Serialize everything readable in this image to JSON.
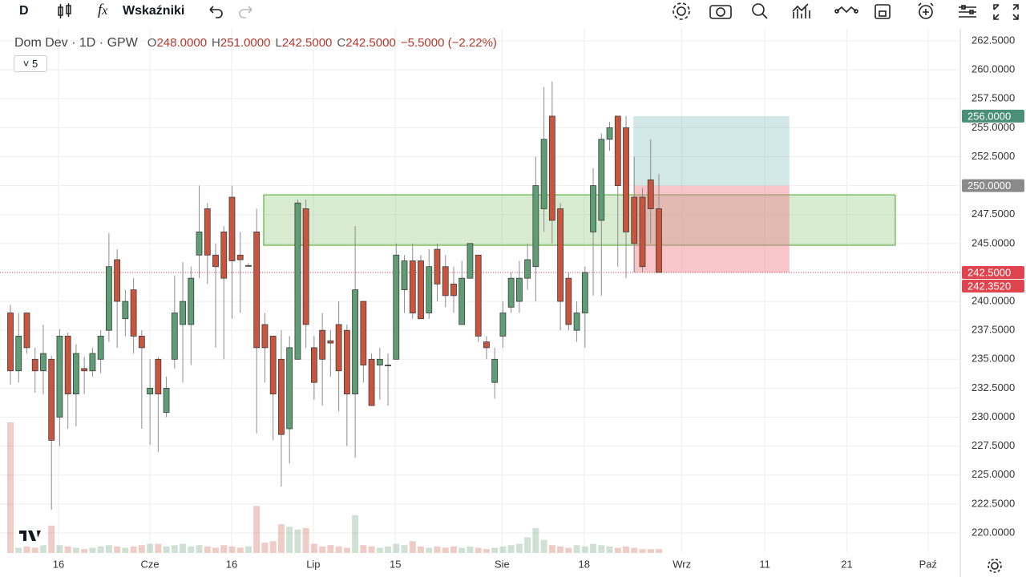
{
  "toolbar": {
    "symbol_button": "D",
    "indicators": "Wskaźniki"
  },
  "header": {
    "title": "Dom Dev · 1D · GPW",
    "collapse_count": "5",
    "ohlc": [
      {
        "label": "O",
        "value": "248.0000"
      },
      {
        "label": "H",
        "value": "251.0000"
      },
      {
        "label": "L",
        "value": "242.5000"
      },
      {
        "label": "C",
        "value": "242.5000"
      }
    ],
    "change": "−5.5000 (−2.22%)"
  },
  "chart_data": {
    "type": "candlestick",
    "x": [
      0,
      1,
      2,
      3,
      4,
      5,
      6,
      7,
      8,
      9,
      10,
      11,
      12,
      13,
      14,
      15,
      16,
      17,
      18,
      19,
      20,
      21,
      22,
      23,
      24,
      25,
      26,
      27,
      28,
      29,
      30,
      31,
      32,
      33,
      34,
      35,
      36,
      37,
      38,
      39,
      40,
      41,
      42,
      43,
      44,
      45,
      46,
      47,
      48,
      49,
      50,
      51,
      52,
      53,
      54,
      55,
      56,
      57,
      58,
      59,
      60,
      61,
      62,
      63,
      64,
      65,
      66,
      67,
      68,
      69,
      70,
      71,
      72,
      73,
      74,
      75,
      76,
      77,
      78,
      79
    ],
    "open": [
      239,
      234,
      239,
      235,
      234,
      235,
      230,
      237,
      232,
      234.2,
      234,
      235,
      237.5,
      243.6,
      238.5,
      241,
      237,
      232,
      235,
      230.4,
      235,
      238,
      238,
      244,
      248,
      244,
      246,
      249,
      244,
      243.1,
      246,
      238,
      237,
      235,
      229,
      235,
      248,
      236,
      237.5,
      236.6,
      238,
      237.5,
      232,
      240,
      235,
      234.5,
      234.5,
      235,
      241,
      243.5,
      243.5,
      239,
      244.5,
      243,
      241.5,
      238,
      242,
      244,
      236.5,
      233,
      237,
      239.5,
      240,
      242,
      243,
      248,
      256,
      248,
      242,
      237.5,
      239,
      246,
      247,
      254,
      256,
      255,
      249,
      249,
      250.5,
      248
    ],
    "high": [
      239.7,
      239,
      239,
      236,
      238,
      235.3,
      237.6,
      237.3,
      236.3,
      235.2,
      236,
      237.5,
      245.9,
      244.5,
      241,
      242,
      237.5,
      235,
      235.2,
      233.5,
      242.2,
      243.4,
      243,
      250,
      248.5,
      245,
      246.5,
      250,
      246,
      243.3,
      248,
      239,
      237,
      237.5,
      237,
      248.8,
      248.8,
      237,
      239,
      237.5,
      240,
      238,
      246.5,
      240,
      235.5,
      236,
      235.5,
      245,
      244,
      245,
      244,
      244.5,
      245,
      244,
      243,
      243.5,
      245,
      244,
      237,
      236,
      240,
      242.5,
      243.5,
      245,
      252.5,
      258.5,
      259,
      248.5,
      242.5,
      240,
      243,
      251.5,
      254.5,
      255.5,
      256,
      256,
      252.5,
      249.8,
      254,
      251
    ],
    "low": [
      232.8,
      233,
      235.5,
      232.1,
      232,
      222,
      227.5,
      229,
      229.2,
      232,
      233.5,
      233.8,
      236.5,
      236,
      237,
      235.5,
      229,
      227.6,
      227,
      230,
      234.2,
      233,
      234.5,
      242,
      241.5,
      236,
      235,
      238.5,
      239,
      243,
      228.6,
      233,
      228,
      224,
      226,
      235,
      236,
      231.5,
      231,
      233.5,
      230.5,
      227.5,
      226.5,
      233,
      231,
      231.5,
      231,
      235,
      239,
      238.5,
      238.5,
      238.5,
      240,
      239.5,
      239,
      238,
      242,
      236.5,
      235,
      231.6,
      236,
      239,
      239,
      241,
      240,
      246,
      245,
      237.5,
      237.5,
      236.5,
      236,
      240.5,
      240.5,
      253,
      243,
      242,
      242.5,
      242.5,
      245,
      242.5
    ],
    "close": [
      234,
      237,
      236,
      234,
      235.5,
      228,
      237,
      232,
      235.5,
      234,
      235.5,
      237,
      243,
      240,
      240,
      237,
      236,
      232.5,
      232,
      232.5,
      239,
      240,
      242,
      246,
      244,
      243,
      242,
      243.5,
      243.6,
      243.1,
      236,
      236,
      232,
      228.5,
      236,
      248.5,
      238,
      233,
      235,
      236.4,
      234,
      232,
      241,
      234.5,
      231,
      235,
      234.5,
      244,
      243.5,
      239,
      238.5,
      243,
      241.5,
      240.5,
      240.5,
      242,
      245,
      237,
      236,
      235,
      239,
      242,
      242,
      243.6,
      250,
      254,
      247,
      240,
      238,
      239,
      242.5,
      250,
      254,
      255,
      250,
      246,
      245,
      243,
      248,
      242.5
    ],
    "volume": [
      100,
      4,
      5,
      4,
      6,
      21,
      6,
      5,
      4,
      3,
      4,
      5,
      6,
      5,
      4,
      5,
      6,
      7,
      7,
      5,
      6,
      7,
      5,
      6,
      5,
      4,
      6,
      5,
      4,
      5,
      36,
      8,
      9,
      22,
      20,
      18,
      19,
      7,
      5,
      6,
      5,
      4,
      29,
      6,
      5,
      4,
      5,
      7,
      6,
      9,
      5,
      4,
      5,
      4,
      5,
      4,
      5,
      4,
      3,
      4,
      5,
      6,
      7,
      12,
      19,
      10,
      6,
      5,
      4,
      6,
      5,
      7,
      6,
      5,
      4,
      5,
      4,
      3,
      3,
      3
    ],
    "up_color": "#5f9d74",
    "down_color": "#c9553f",
    "xlim": [
      -1.27,
      115.72
    ],
    "ylim": [
      218.27,
      263.54
    ],
    "xticks": [
      {
        "value": 5.86,
        "label": "16"
      },
      {
        "value": 17,
        "label": "Cze"
      },
      {
        "value": 26.95,
        "label": "16"
      },
      {
        "value": 36.9,
        "label": "Lip"
      },
      {
        "value": 46.9,
        "label": "15"
      },
      {
        "value": 59.9,
        "label": "Sie"
      },
      {
        "value": 69.9,
        "label": "18"
      },
      {
        "value": 81.8,
        "label": "Wrz"
      },
      {
        "value": 91.9,
        "label": "11"
      },
      {
        "value": 101.9,
        "label": "21"
      },
      {
        "value": 111.8,
        "label": "Paź"
      }
    ],
    "yticks": [
      {
        "value": 220,
        "label": "220.0000"
      },
      {
        "value": 222.5,
        "label": "222.5000"
      },
      {
        "value": 225,
        "label": "225.0000"
      },
      {
        "value": 227.5,
        "label": "227.5000"
      },
      {
        "value": 230,
        "label": "230.0000"
      },
      {
        "value": 232.5,
        "label": "232.5000"
      },
      {
        "value": 235,
        "label": "235.0000"
      },
      {
        "value": 237.5,
        "label": "237.5000"
      },
      {
        "value": 240,
        "label": "240.0000"
      },
      {
        "value": 242.5,
        "label": "242.5000"
      },
      {
        "value": 245,
        "label": "245.0000"
      },
      {
        "value": 247.5,
        "label": "247.5000"
      },
      {
        "value": 250,
        "label": "250.0000"
      },
      {
        "value": 252.5,
        "label": "252.5000"
      },
      {
        "value": 255,
        "label": "255.0000"
      },
      {
        "value": 257.5,
        "label": "257.5000"
      },
      {
        "value": 260,
        "label": "260.0000"
      },
      {
        "value": 262.5,
        "label": "262.5000"
      }
    ],
    "grid": true,
    "price_labels": [
      {
        "value": 256,
        "label": "256.0000",
        "color": "#4a8f78"
      },
      {
        "value": 250,
        "label": "250.0000",
        "color": "#8a8a8a"
      },
      {
        "value": 242.5,
        "label": "242.5000",
        "color": "#e0454f"
      },
      {
        "value": 242.352,
        "label": "242.3520",
        "color": "#e0454f"
      }
    ],
    "last_price": 242.5,
    "zone": {
      "x_start": 30.86,
      "x_end": 107.8,
      "top": 249.2,
      "bottom": 244.85,
      "color": "#7cbf64"
    },
    "position": {
      "x_start": 75.9,
      "x_end": 94.9,
      "entry": 250,
      "target": 256,
      "stop": 242.5,
      "profit_color": "#7fbcb6",
      "loss_color": "#ef7f8c"
    }
  }
}
